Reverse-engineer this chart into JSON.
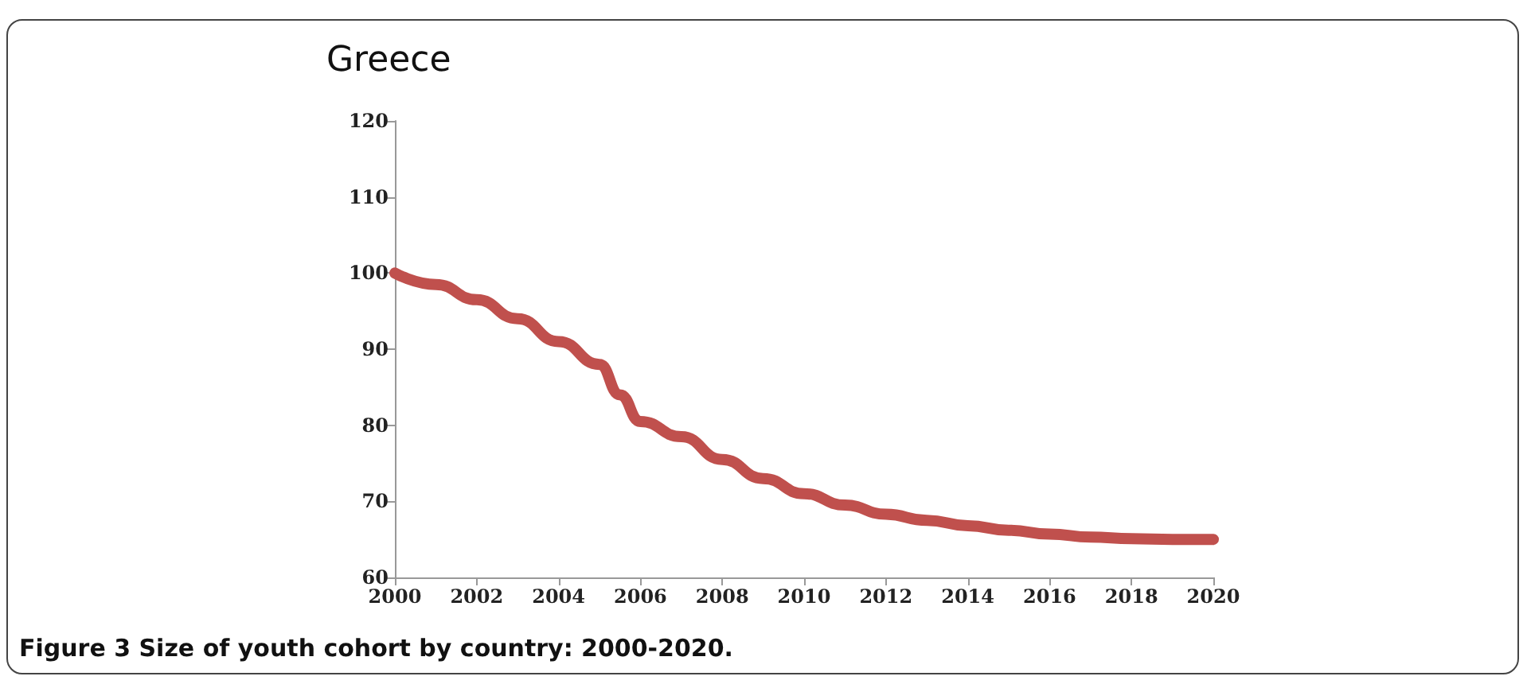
{
  "chart_data": {
    "type": "line",
    "title": "Greece",
    "annotations": [
      "Figure 3 Size of youth cohort by country: 2000-2020."
    ],
    "x": [
      2000,
      2001,
      2002,
      2003,
      2004,
      2005,
      2005.5,
      2006,
      2007,
      2008,
      2009,
      2010,
      2011,
      2012,
      2013,
      2014,
      2015,
      2016,
      2017,
      2018,
      2019,
      2020
    ],
    "series": [
      {
        "color": "#c0504d",
        "values": [
          100,
          98.5,
          96.5,
          94,
          91,
          88,
          84,
          80.5,
          78.5,
          75.5,
          73,
          71,
          69.5,
          68.3,
          67.5,
          66.8,
          66.2,
          65.7,
          65.3,
          65.1,
          65,
          65
        ]
      }
    ],
    "xlim": [
      2000,
      2020
    ],
    "xticks": [
      2000,
      2002,
      2004,
      2006,
      2008,
      2010,
      2012,
      2014,
      2016,
      2018,
      2020
    ],
    "ylim": [
      60,
      120
    ],
    "yticks": [
      60,
      70,
      80,
      90,
      100,
      110,
      120
    ],
    "grid": false,
    "line_style": "solid"
  }
}
